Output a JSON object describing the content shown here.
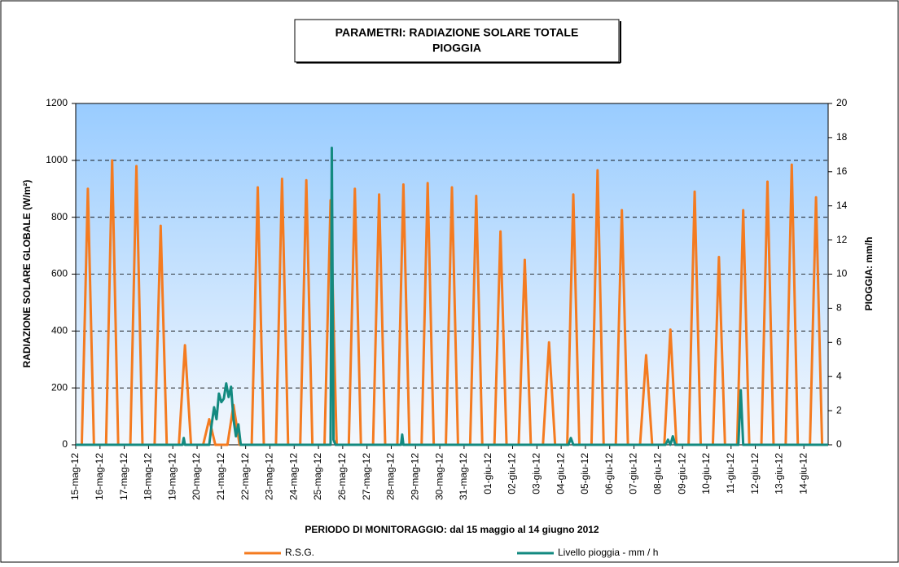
{
  "chart_data": {
    "type": "line",
    "title": [
      "PARAMETRI: RADIAZIONE SOLARE TOTALE",
      "PIOGGIA"
    ],
    "x_label": "PERIODO DI MONITORAGGIO: dal 15 maggio al 14 giugno 2012",
    "y_label": "RADIAZIONE SOLARE GLOBALE (W/m²)",
    "y2_label": "PIOGGIA: mm/h",
    "xlim": [
      0,
      31
    ],
    "xticks": [
      {
        "value": 0,
        "label": "15-mag-12"
      },
      {
        "value": 1,
        "label": "16-mag-12"
      },
      {
        "value": 2,
        "label": "17-mag-12"
      },
      {
        "value": 3,
        "label": "18-mag-12"
      },
      {
        "value": 4,
        "label": "19-mag-12"
      },
      {
        "value": 5,
        "label": "20-mag-12"
      },
      {
        "value": 6,
        "label": "21-mag-12"
      },
      {
        "value": 7,
        "label": "22-mag-12"
      },
      {
        "value": 8,
        "label": "23-mag-12"
      },
      {
        "value": 9,
        "label": "24-mag-12"
      },
      {
        "value": 10,
        "label": "25-mag-12"
      },
      {
        "value": 11,
        "label": "26-mag-12"
      },
      {
        "value": 12,
        "label": "27-mag-12"
      },
      {
        "value": 13,
        "label": "28-mag-12"
      },
      {
        "value": 14,
        "label": "29-mag-12"
      },
      {
        "value": 15,
        "label": "30-mag-12"
      },
      {
        "value": 16,
        "label": "31-mag-12"
      },
      {
        "value": 17,
        "label": "01-giu-12"
      },
      {
        "value": 18,
        "label": "02-giu-12"
      },
      {
        "value": 19,
        "label": "03-giu-12"
      },
      {
        "value": 20,
        "label": "04-giu-12"
      },
      {
        "value": 21,
        "label": "05-giu-12"
      },
      {
        "value": 22,
        "label": "06-giu-12"
      },
      {
        "value": 23,
        "label": "07-giu-12"
      },
      {
        "value": 24,
        "label": "08-giu-12"
      },
      {
        "value": 25,
        "label": "09-giu-12"
      },
      {
        "value": 26,
        "label": "10-giu-12"
      },
      {
        "value": 27,
        "label": "11-giu-12"
      },
      {
        "value": 28,
        "label": "12-giu-12"
      },
      {
        "value": 29,
        "label": "13-giu-12"
      },
      {
        "value": 30,
        "label": "14-giu-12"
      }
    ],
    "ylim": [
      0,
      1200
    ],
    "yticks": [
      0,
      200,
      400,
      600,
      800,
      1000,
      1200
    ],
    "y2lim": [
      0,
      20
    ],
    "y2ticks": [
      0,
      2,
      4,
      6,
      8,
      10,
      12,
      14,
      16,
      18,
      20
    ],
    "grid": true,
    "series": [
      {
        "name": "R.S.G.",
        "color": "#f47b20",
        "x": [
          0.25,
          0.5,
          0.75,
          1.25,
          1.5,
          1.75,
          2.25,
          2.5,
          2.75,
          3.25,
          3.5,
          3.75,
          4.25,
          4.5,
          4.75,
          5.25,
          5.5,
          5.75,
          6.25,
          6.5,
          6.75,
          7.25,
          7.5,
          7.75,
          8.25,
          8.5,
          8.75,
          9.25,
          9.5,
          9.75,
          10.25,
          10.5,
          10.75,
          11.25,
          11.5,
          11.75,
          12.25,
          12.5,
          12.75,
          13.25,
          13.5,
          13.75,
          14.25,
          14.5,
          14.75,
          15.25,
          15.5,
          15.75,
          16.25,
          16.5,
          16.75,
          17.25,
          17.5,
          17.75,
          18.25,
          18.5,
          18.75,
          19.25,
          19.5,
          19.75,
          20.25,
          20.5,
          20.75,
          21.25,
          21.5,
          21.75,
          22.25,
          22.5,
          22.75,
          23.25,
          23.5,
          23.75,
          24.25,
          24.5,
          24.75,
          25.25,
          25.5,
          25.75,
          26.25,
          26.5,
          26.75,
          27.25,
          27.5,
          27.75,
          28.25,
          28.5,
          28.75,
          29.25,
          29.5,
          29.75,
          30.25,
          30.5,
          30.75
        ],
        "values": [
          0,
          900,
          0,
          0,
          1000,
          0,
          0,
          980,
          0,
          0,
          770,
          0,
          0,
          350,
          0,
          0,
          90,
          0,
          0,
          140,
          0,
          0,
          905,
          0,
          0,
          935,
          0,
          0,
          930,
          0,
          0,
          860,
          0,
          0,
          900,
          0,
          0,
          880,
          0,
          0,
          915,
          0,
          0,
          920,
          0,
          0,
          905,
          0,
          0,
          875,
          0,
          0,
          750,
          0,
          0,
          650,
          0,
          0,
          360,
          0,
          0,
          880,
          0,
          0,
          965,
          0,
          0,
          825,
          0,
          0,
          315,
          0,
          0,
          405,
          0,
          0,
          890,
          0,
          0,
          660,
          0,
          0,
          825,
          0,
          0,
          925,
          0,
          0,
          985,
          0,
          0,
          870,
          0
        ]
      },
      {
        "name": "Livello pioggia - mm / h",
        "color": "#138a80",
        "axis": "y2",
        "x": [
          0,
          4.4,
          4.45,
          4.5,
          5.5,
          5.6,
          5.7,
          5.8,
          5.9,
          6.0,
          6.1,
          6.2,
          6.3,
          6.4,
          6.5,
          6.6,
          6.7,
          6.8,
          10.5,
          10.55,
          10.62,
          10.7,
          13.4,
          13.45,
          13.5,
          20.3,
          20.4,
          20.5,
          24.3,
          24.4,
          24.5,
          24.6,
          24.7,
          27.3,
          27.4,
          27.5,
          31
        ],
        "values": [
          0,
          0,
          0.4,
          0,
          0,
          1.2,
          2.2,
          1.5,
          3.0,
          2.5,
          2.7,
          3.6,
          2.8,
          3.4,
          1.5,
          0.5,
          1.2,
          0,
          0,
          17.4,
          0.3,
          0,
          0,
          0.6,
          0,
          0,
          0.4,
          0,
          0,
          0.3,
          0,
          0.5,
          0,
          0,
          3.2,
          0,
          0
        ]
      }
    ]
  }
}
